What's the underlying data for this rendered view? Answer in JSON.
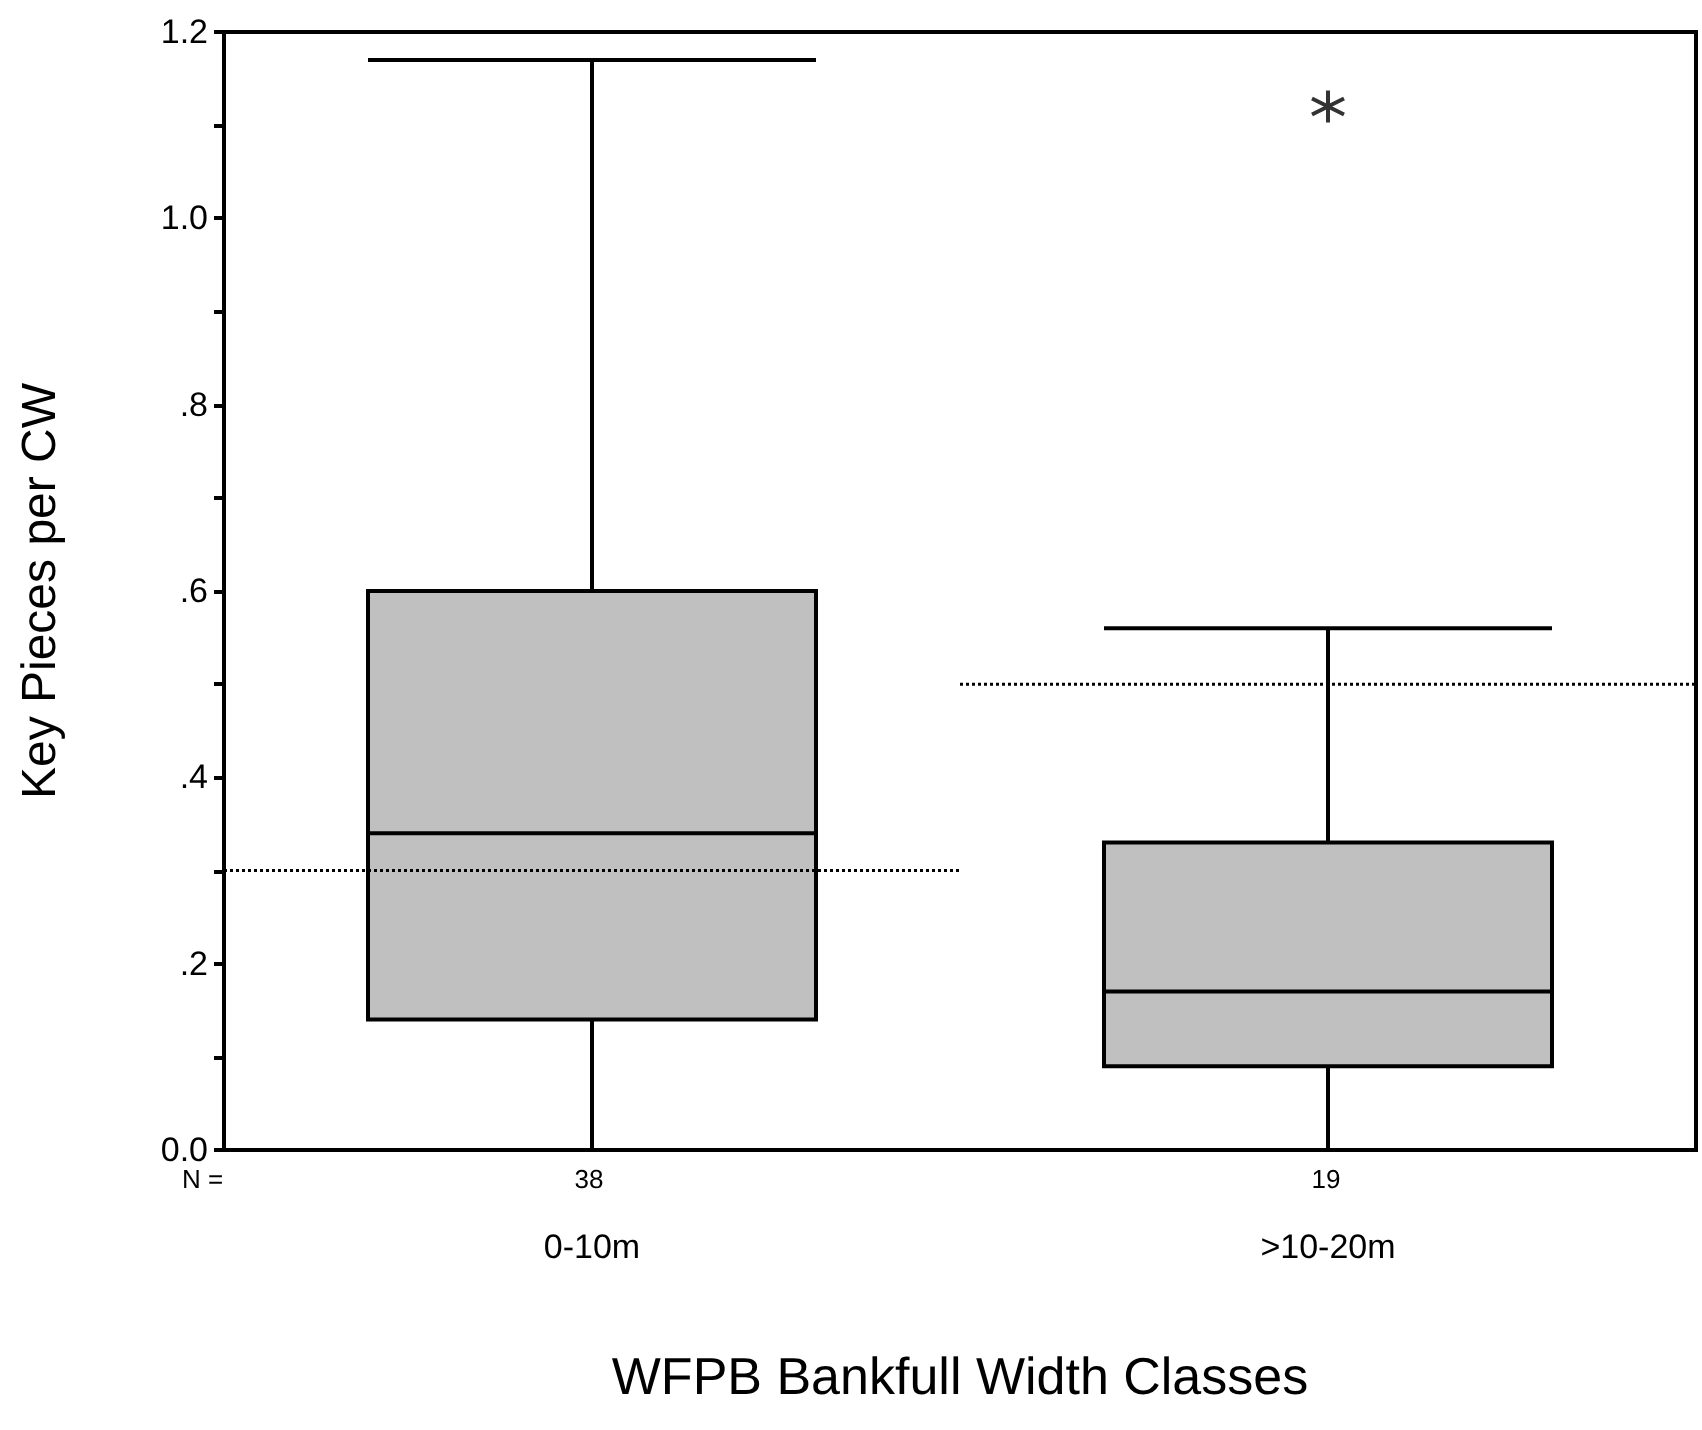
{
  "chart_data": {
    "type": "box",
    "xlabel": "WFPB Bankfull Width Classes",
    "ylabel": "Key Pieces per CW",
    "categories": [
      "0-10m",
      ">10-20m"
    ],
    "color": "#c0c0c0",
    "boxes": [
      {
        "low": 0,
        "q1": 0.14,
        "median": 0.34,
        "q3": 0.6,
        "high": 1.17
      },
      {
        "low": 0,
        "q1": 0.09,
        "median": 0.17,
        "q3": 0.33,
        "high": 0.56,
        "outliers": [
          1.12
        ]
      }
    ],
    "marker": "star",
    "ylim": [
      0,
      1.2
    ],
    "yticks": [
      {
        "value": 0,
        "label": "0.0"
      },
      {
        "value": 0.1,
        "label": null
      },
      {
        "value": 0.2,
        "label": ".2"
      },
      {
        "value": 0.3,
        "label": null
      },
      {
        "value": 0.4,
        "label": ".4"
      },
      {
        "value": 0.5,
        "label": null
      },
      {
        "value": 0.6,
        "label": ".6"
      },
      {
        "value": 0.7,
        "label": null
      },
      {
        "value": 0.8,
        "label": ".8"
      },
      {
        "value": 0.9,
        "label": null
      },
      {
        "value": 1,
        "label": "1.0"
      },
      {
        "value": 1.1,
        "label": null
      },
      {
        "value": 1.2,
        "label": "1.2"
      }
    ],
    "ref_lines": [
      {
        "axis": "y",
        "value": 0.3,
        "label": null,
        "line_style": "dotted",
        "color": "#000000"
      },
      {
        "axis": "y",
        "value": 0.5,
        "label": null,
        "line_style": "dotted",
        "color": "#000000"
      }
    ],
    "annotations": [
      "N =",
      "38",
      "19"
    ]
  }
}
